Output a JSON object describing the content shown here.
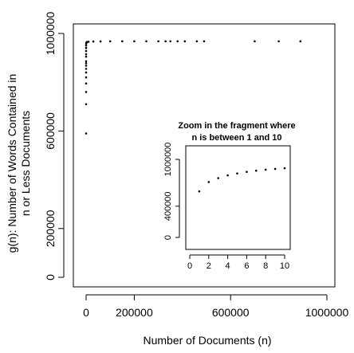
{
  "chart_data": [
    {
      "type": "scatter",
      "xlabel": "Number of Documents (n)",
      "ylabel": [
        "g(n): Number of Words Contained in",
        "n or Less Documents"
      ],
      "xlim": [
        0,
        1000000
      ],
      "ylim": [
        0,
        1000000
      ],
      "x_ticks": [
        0,
        200000,
        600000,
        1000000
      ],
      "x_tick_labels": [
        "0",
        "200000",
        "600000",
        "1000000"
      ],
      "y_ticks": [
        0,
        200000,
        600000,
        1000000
      ],
      "y_tick_labels": [
        "0",
        "200000",
        "600000",
        "1000000"
      ],
      "grid": false,
      "points": [
        {
          "x": 1,
          "y": 590000
        },
        {
          "x": 2,
          "y": 710000
        },
        {
          "x": 3,
          "y": 760000
        },
        {
          "x": 4,
          "y": 795000
        },
        {
          "x": 5,
          "y": 820000
        },
        {
          "x": 6,
          "y": 840000
        },
        {
          "x": 7,
          "y": 855000
        },
        {
          "x": 8,
          "y": 868000
        },
        {
          "x": 9,
          "y": 878000
        },
        {
          "x": 10,
          "y": 886000
        },
        {
          "x": 15,
          "y": 905000
        },
        {
          "x": 20,
          "y": 915000
        },
        {
          "x": 30,
          "y": 928000
        },
        {
          "x": 50,
          "y": 940000
        },
        {
          "x": 100,
          "y": 950000
        },
        {
          "x": 300,
          "y": 958000
        },
        {
          "x": 1000,
          "y": 962000
        },
        {
          "x": 3000,
          "y": 965000
        },
        {
          "x": 10000,
          "y": 966000
        },
        {
          "x": 30000,
          "y": 967000
        },
        {
          "x": 60000,
          "y": 967500
        },
        {
          "x": 100000,
          "y": 968000
        },
        {
          "x": 150000,
          "y": 968000
        },
        {
          "x": 200000,
          "y": 968000
        },
        {
          "x": 250000,
          "y": 968000
        },
        {
          "x": 300000,
          "y": 968000
        },
        {
          "x": 330000,
          "y": 968000
        },
        {
          "x": 350000,
          "y": 968000
        },
        {
          "x": 380000,
          "y": 968000
        },
        {
          "x": 410000,
          "y": 968000
        },
        {
          "x": 460000,
          "y": 968000
        },
        {
          "x": 490000,
          "y": 968000
        },
        {
          "x": 700000,
          "y": 968000
        },
        {
          "x": 800000,
          "y": 968000
        },
        {
          "x": 890000,
          "y": 968000
        }
      ]
    },
    {
      "type": "scatter",
      "title": [
        "Zoom in the fragment  where",
        "n is between 1 and 10"
      ],
      "xlim": [
        0,
        10
      ],
      "ylim": [
        0,
        1000000
      ],
      "x_ticks": [
        0,
        2,
        4,
        6,
        8,
        10
      ],
      "x_tick_labels": [
        "0",
        "2",
        "4",
        "6",
        "8",
        "10"
      ],
      "y_ticks": [
        0,
        400000,
        1000000
      ],
      "y_tick_labels": [
        "0",
        "400000",
        "1000000"
      ],
      "grid": false,
      "points": [
        {
          "x": 1,
          "y": 590000
        },
        {
          "x": 2,
          "y": 710000
        },
        {
          "x": 3,
          "y": 760000
        },
        {
          "x": 4,
          "y": 795000
        },
        {
          "x": 5,
          "y": 820000
        },
        {
          "x": 6,
          "y": 840000
        },
        {
          "x": 7,
          "y": 855000
        },
        {
          "x": 8,
          "y": 868000
        },
        {
          "x": 9,
          "y": 878000
        },
        {
          "x": 10,
          "y": 886000
        }
      ]
    }
  ]
}
